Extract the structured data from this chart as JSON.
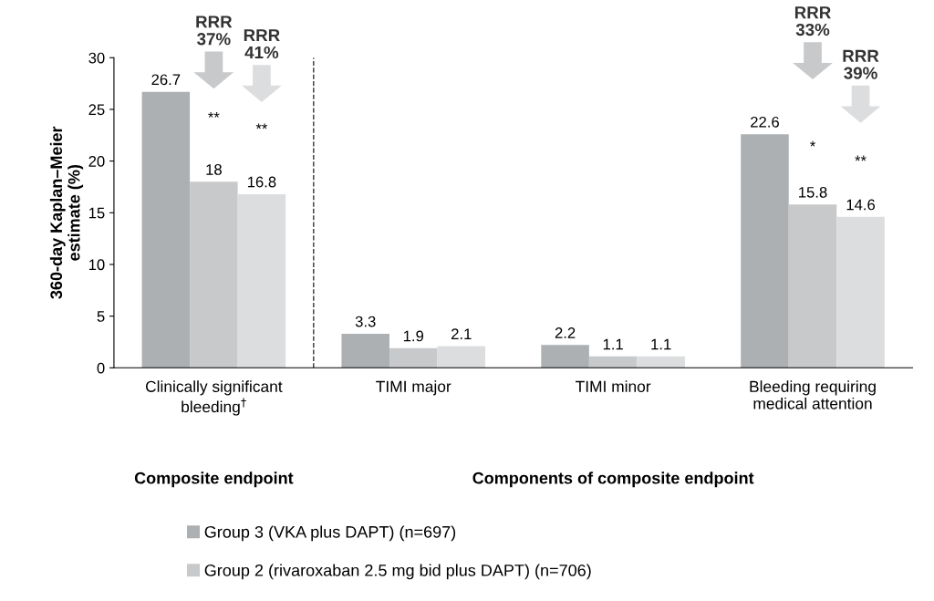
{
  "chart_data": {
    "type": "bar",
    "categories": [
      "Clinically significant\nbleeding$^{†}$",
      "TIMI major",
      "TIMI minor",
      "Bleeding requiring\nmedical attention"
    ],
    "series": [
      {
        "name": "Group 3 (VKA plus DAPT) (n=697)",
        "color": "#adb0b3",
        "values": [
          26.7,
          3.3,
          2.2,
          22.6
        ]
      },
      {
        "name": "Group 2 (rivaroxaban 2.5 mg bid plus DAPT) (n=706)",
        "color": "#c8c9cb",
        "values": [
          18,
          1.9,
          1.1,
          15.8
        ]
      },
      {
        "color": "#dcddde",
        "values": [
          16.8,
          2.1,
          1.1,
          14.6
        ]
      }
    ],
    "ylabel": "360-day Kaplan–Meier\nestimate (%)",
    "ylim": [
      0,
      30
    ],
    "yticks": [
      0,
      5,
      10,
      15,
      20,
      25,
      30
    ],
    "data_labels": true,
    "grid": false,
    "legend": "bottom",
    "annotations": [
      "**",
      "RRR\n37%",
      "**",
      "RRR\n41%",
      "*",
      "RRR\n33%",
      "**",
      "RRR\n39%",
      "Composite endpoint",
      "Components of composite endpoint"
    ]
  }
}
